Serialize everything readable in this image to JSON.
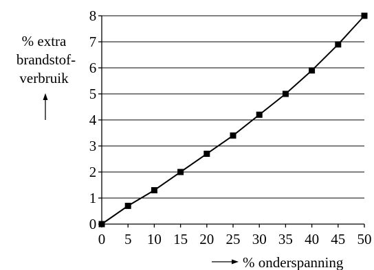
{
  "chart_data": {
    "type": "line",
    "x": [
      0,
      5,
      10,
      15,
      20,
      25,
      30,
      35,
      40,
      45,
      50
    ],
    "series": [
      {
        "values": [
          0,
          0.7,
          1.3,
          2.0,
          2.7,
          3.4,
          4.2,
          5.0,
          5.9,
          6.9,
          8.0
        ]
      }
    ],
    "xlabel": "% onderspanning",
    "ylabel": [
      "% extra",
      "brandstof-",
      "verbruik"
    ],
    "xticks": [
      "0",
      "5",
      "10",
      "15",
      "20",
      "25",
      "30",
      "35",
      "40",
      "45",
      "50"
    ],
    "yticks": [
      "0",
      "1",
      "2",
      "3",
      "4",
      "5",
      "6",
      "7",
      "8"
    ],
    "xlim": [
      0,
      50
    ],
    "ylim": [
      0,
      8
    ],
    "grid": "horizontal",
    "marker": "square",
    "colors": {
      "line": "#000000",
      "grid": "#000000",
      "background": "#ffffff"
    }
  }
}
